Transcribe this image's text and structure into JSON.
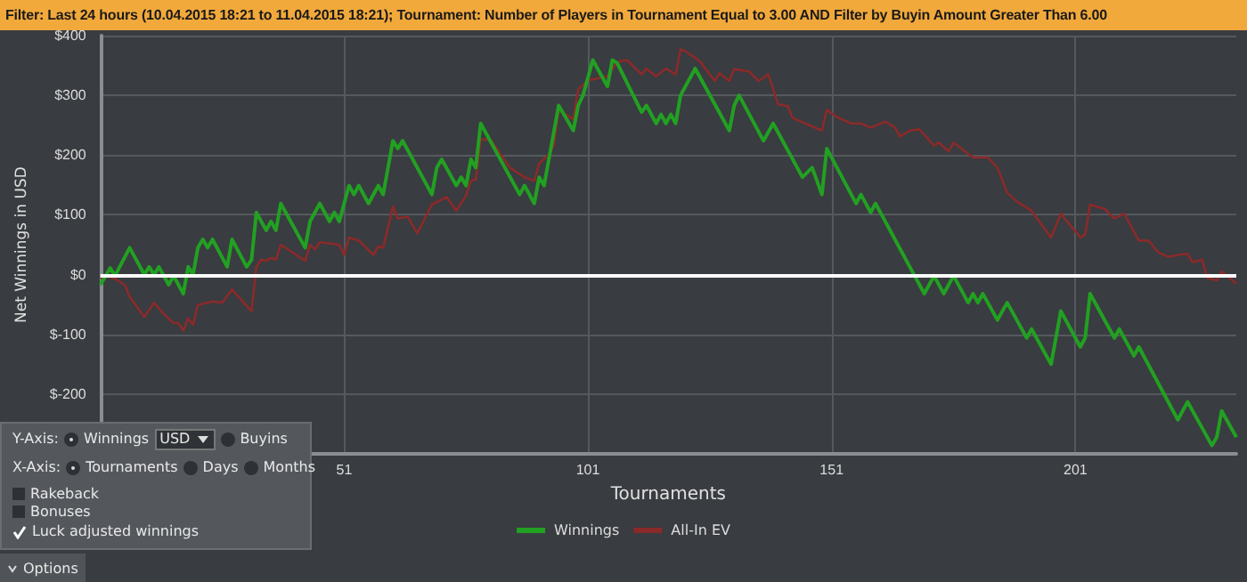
{
  "chart_data": {
    "type": "line",
    "title": "Filter: Last 24 hours (10.04.2015 18:21 to 11.04.2015 18:21); Tournament: Number of Players in Tournament Equal to 3.00 AND Filter by Buyin Amount Greater Than 6.00",
    "xlabel": "Tournaments",
    "ylabel": "Net Winnings in USD",
    "series": [
      {
        "name": "Winnings",
        "color": "#22a022",
        "x": [
          1,
          3,
          4,
          7,
          10,
          11,
          12,
          13,
          15,
          16,
          18,
          19,
          20,
          21,
          22,
          23,
          24,
          27,
          28,
          31,
          32,
          33,
          35,
          36,
          37,
          38,
          43,
          44,
          46,
          48,
          49,
          50,
          52,
          53,
          54,
          56,
          58,
          59,
          61,
          62,
          63,
          69,
          70,
          71,
          74,
          75,
          76,
          77,
          78,
          79,
          87,
          88,
          90,
          91,
          92,
          95,
          98,
          99,
          100,
          102,
          105,
          106,
          107,
          112,
          113,
          115,
          116,
          117,
          118,
          119,
          120,
          123,
          130,
          131,
          132,
          137,
          139,
          145,
          147,
          149,
          150,
          156,
          157,
          159,
          160,
          170,
          172,
          174,
          176,
          179,
          180,
          181,
          182,
          185,
          187,
          191,
          192,
          196,
          198,
          202,
          203,
          204,
          209,
          210,
          213,
          214,
          222,
          224,
          229,
          230,
          231,
          234
        ],
        "values": [
          -17,
          11,
          -2,
          45,
          0,
          13,
          0,
          13,
          -17,
          -2,
          -32,
          13,
          0,
          45,
          59,
          45,
          59,
          13,
          59,
          13,
          25,
          104,
          74,
          89,
          74,
          119,
          45,
          89,
          119,
          89,
          104,
          89,
          149,
          134,
          149,
          119,
          149,
          134,
          224,
          211,
          224,
          134,
          179,
          193,
          149,
          163,
          149,
          193,
          179,
          253,
          134,
          149,
          119,
          163,
          149,
          283,
          241,
          283,
          300,
          359,
          315,
          359,
          354,
          272,
          283,
          253,
          268,
          253,
          268,
          253,
          300,
          345,
          241,
          283,
          300,
          224,
          253,
          163,
          179,
          134,
          211,
          119,
          134,
          104,
          119,
          -32,
          -2,
          -32,
          -2,
          -47,
          -32,
          -47,
          -32,
          -76,
          -47,
          -106,
          -91,
          -150,
          -61,
          -121,
          -106,
          -32,
          -106,
          -91,
          -136,
          -121,
          -243,
          -213,
          -286,
          -272,
          -228,
          -272
        ]
      },
      {
        "name": "All-In EV",
        "color": "#8b2a2a",
        "x": [
          1,
          2,
          4,
          6,
          7,
          10,
          12,
          14,
          16,
          17,
          18,
          19,
          20,
          21,
          24,
          26,
          28,
          32,
          33,
          34,
          35,
          36,
          37,
          38,
          43,
          44,
          45,
          46,
          50,
          51,
          52,
          54,
          57,
          58,
          59,
          61,
          62,
          64,
          66,
          69,
          72,
          74,
          76,
          77,
          78,
          79,
          81,
          85,
          88,
          90,
          91,
          93,
          94,
          95,
          98,
          99,
          101,
          105,
          107,
          109,
          112,
          113,
          115,
          117,
          119,
          120,
          121,
          124,
          127,
          128,
          130,
          131,
          134,
          136,
          138,
          140,
          142,
          143,
          149,
          150,
          152,
          155,
          157,
          159,
          162,
          164,
          165,
          167,
          169,
          172,
          173,
          175,
          176,
          180,
          183,
          185,
          187,
          189,
          192,
          196,
          198,
          202,
          203,
          204,
          207,
          209,
          211,
          214,
          216,
          218,
          220,
          224,
          225,
          227,
          228,
          230,
          231,
          234
        ],
        "values": [
          -7,
          -2,
          -7,
          -17,
          -37,
          -71,
          -47,
          -66,
          -81,
          -81,
          -94,
          -73,
          -84,
          -51,
          -45,
          -47,
          -25,
          -61,
          13,
          25,
          23,
          28,
          25,
          50,
          23,
          50,
          42,
          54,
          50,
          33,
          62,
          57,
          33,
          47,
          45,
          114,
          94,
          97,
          69,
          117,
          130,
          107,
          132,
          157,
          159,
          226,
          226,
          179,
          163,
          157,
          186,
          201,
          216,
          275,
          260,
          310,
          325,
          332,
          356,
          359,
          335,
          345,
          332,
          345,
          335,
          377,
          374,
          357,
          324,
          337,
          324,
          344,
          340,
          324,
          335,
          285,
          282,
          262,
          241,
          276,
          264,
          253,
          253,
          246,
          256,
          246,
          231,
          241,
          243,
          216,
          221,
          206,
          221,
          196,
          196,
          179,
          137,
          122,
          107,
          62,
          102,
          62,
          67,
          117,
          110,
          94,
          102,
          57,
          57,
          37,
          30,
          35,
          21,
          25,
          -5,
          -10,
          5,
          -15
        ]
      }
    ],
    "xlim": [
      1,
      234
    ],
    "xticks": [
      51,
      101,
      151,
      201
    ],
    "ylim": [
      -300,
      400
    ],
    "yticks": [
      {
        "value": -200,
        "label": "$-200"
      },
      {
        "value": -100,
        "label": "$-100"
      },
      {
        "value": 0,
        "label": "$0"
      },
      {
        "value": 100,
        "label": "$100"
      },
      {
        "value": 200,
        "label": "$200"
      },
      {
        "value": 300,
        "label": "$300"
      },
      {
        "value": 400,
        "label": "$400"
      }
    ],
    "ref_lines": [
      {
        "axis": "y",
        "value": 0,
        "color": "#ffffff"
      }
    ],
    "grid": true,
    "legend": "bottom",
    "marker": "none",
    "line_style": "solid",
    "annotations": [
      "Y-Axis:",
      "Winnings",
      "USD",
      "Buyins",
      "X-Axis:",
      "Tournaments",
      "Days",
      "Months",
      "Rakeback",
      "Bonuses",
      "Luck adjusted winnings",
      "Options"
    ]
  }
}
